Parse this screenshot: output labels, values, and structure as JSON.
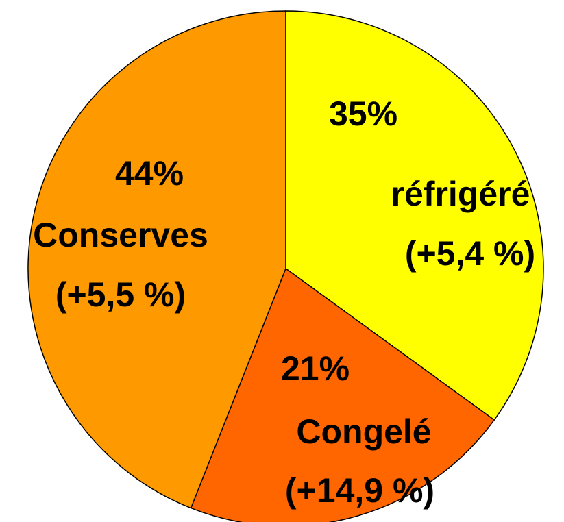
{
  "chart_data": {
    "type": "pie",
    "categories": [
      "réfrigéré",
      "Congelé",
      "Conserves"
    ],
    "values": [
      35,
      21,
      44
    ],
    "value_labels": [
      "35%",
      "21%",
      "44%"
    ],
    "changes": [
      "(+5,4 %)",
      "(+14,9 %)",
      "(+5,5 %)"
    ],
    "colors": [
      "#ffff00",
      "#ff6600",
      "#ff9900"
    ]
  }
}
